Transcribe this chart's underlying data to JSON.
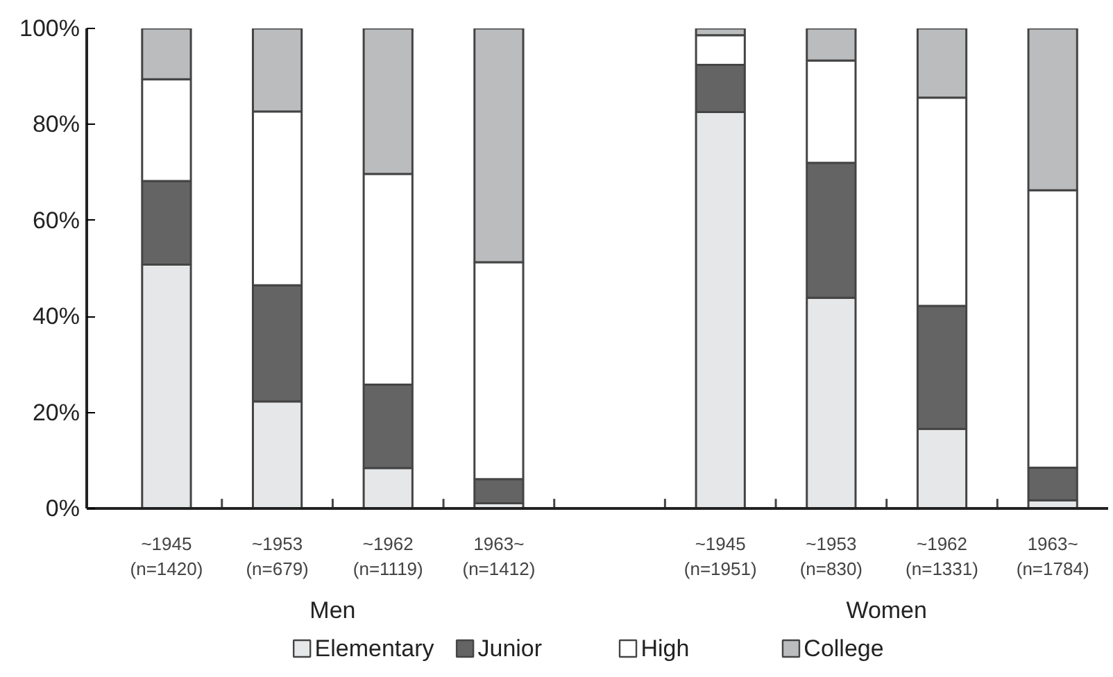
{
  "chart_data": {
    "type": "bar",
    "stacked": true,
    "categories": [
      "~1945\n(n=1420)",
      "~1953\n(n=679)",
      "~1962\n(n=1119)",
      "1963~\n(n=1412)",
      null,
      "~1945\n(n=1951)",
      "~1953\n(n=830)",
      "~1962\n(n=1331)",
      "1963~\n(n=1784)"
    ],
    "series": [
      {
        "name": "Elementary",
        "color": "#e6e7e9",
        "values": [
          50.8,
          22.3,
          8.4,
          1.1,
          null,
          82.6,
          43.9,
          16.6,
          1.7
        ]
      },
      {
        "name": "Junior",
        "color": "#646464",
        "values": [
          17.4,
          24.2,
          17.4,
          5.0,
          null,
          9.8,
          28.1,
          25.6,
          6.8
        ]
      },
      {
        "name": "High",
        "color": "#ffffff",
        "values": [
          21.2,
          36.2,
          43.9,
          45.2,
          null,
          6.2,
          21.3,
          43.4,
          57.8
        ]
      },
      {
        "name": "College",
        "color": "#bbbcbe",
        "values": [
          10.6,
          17.3,
          30.3,
          48.7,
          null,
          1.4,
          6.7,
          14.4,
          33.7
        ]
      }
    ],
    "ylim": [
      0,
      100
    ],
    "yticks": [
      {
        "value": 0,
        "label": "0%"
      },
      {
        "value": 20,
        "label": "20%"
      },
      {
        "value": 40,
        "label": "40%"
      },
      {
        "value": 60,
        "label": "60%"
      },
      {
        "value": 80,
        "label": "80%"
      },
      {
        "value": 100,
        "label": "100%"
      }
    ],
    "annotations": [
      "Men",
      "Women"
    ],
    "legend": "bottom",
    "grid": false
  }
}
